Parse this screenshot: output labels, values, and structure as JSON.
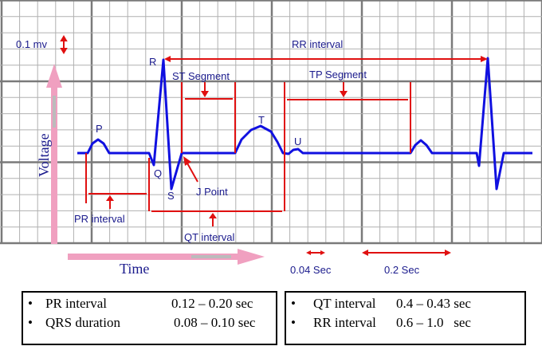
{
  "labels": {
    "voltage_scale": "0.1 mv",
    "rr_interval": "RR interval",
    "st_segment": "ST Segment",
    "tp_segment": "TP Segment",
    "p": "P",
    "q": "Q",
    "r": "R",
    "s": "S",
    "t": "T",
    "u": "U",
    "j_point": "J Point",
    "pr_interval": "PR interval",
    "qt_interval": "QT interval",
    "voltage_axis": "Voltage",
    "time_axis": "Time",
    "small_box_time": "0.04 Sec",
    "large_box_time": "0.2 Sec"
  },
  "normal_values": {
    "left": [
      {
        "bullet": "•",
        "name": "PR interval",
        "value": "0.12 – 0.20 sec"
      },
      {
        "bullet": "•",
        "name": "QRS duration",
        "value": "0.08 – 0.10 sec"
      }
    ],
    "right": [
      {
        "bullet": "•",
        "name": "QT interval",
        "value": "0.4 – 0.43 sec"
      },
      {
        "bullet": "•",
        "name": "RR interval",
        "value": "0.6 – 1.0   sec"
      }
    ]
  },
  "colors": {
    "trace": "#1010e0",
    "annotation": "#e01010",
    "axis_arrow": "#f0a0c0",
    "grid": "#8a8a8a",
    "text": "#1a1a8c"
  }
}
